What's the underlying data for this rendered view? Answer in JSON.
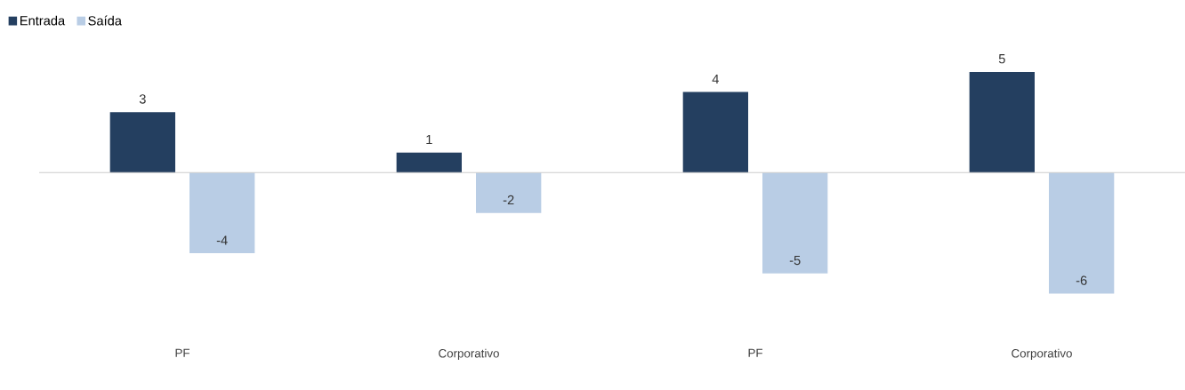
{
  "chart_data": {
    "type": "bar",
    "categories": [
      "PF",
      "Corporativo",
      "PF",
      "Corporativo"
    ],
    "series": [
      {
        "name": "Entrada",
        "color": "#243f60",
        "values": [
          3,
          1,
          4,
          5
        ]
      },
      {
        "name": "Saída",
        "color": "#b9cde5",
        "values": [
          -4,
          -2,
          -5,
          -6
        ]
      }
    ],
    "data_labels": true,
    "legend": "top left"
  }
}
